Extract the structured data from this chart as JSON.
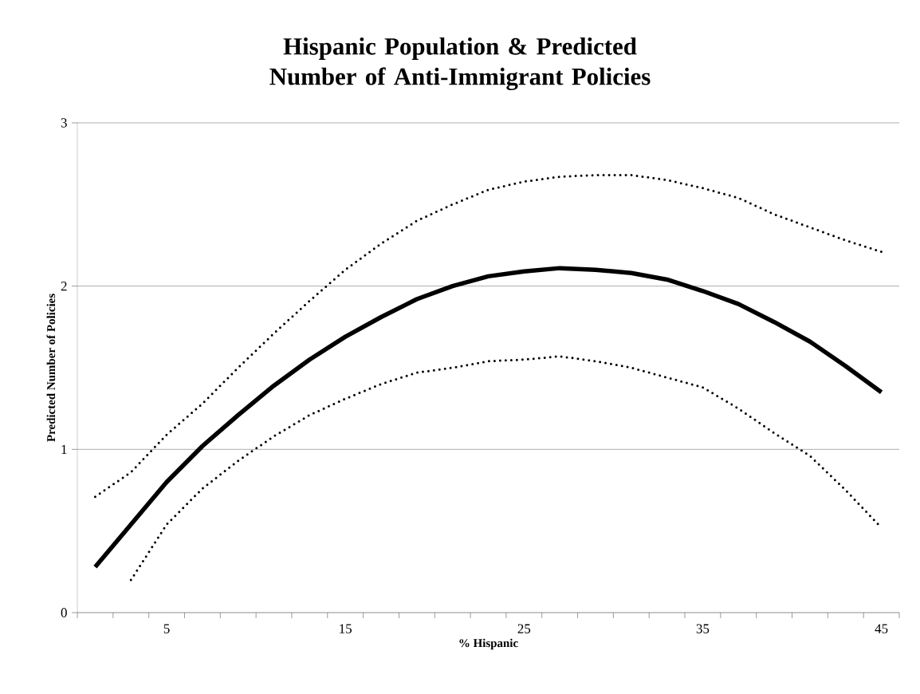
{
  "chart_data": {
    "type": "line",
    "title": "Hispanic Population & Predicted Number of Anti-Immigrant Policies",
    "xlabel": "% Hispanic",
    "ylabel": "Predicted Number of Policies",
    "categories": [
      null,
      null,
      "5",
      null,
      null,
      null,
      null,
      "15",
      null,
      null,
      null,
      null,
      "25",
      null,
      null,
      null,
      null,
      "35",
      null,
      null,
      null,
      null,
      "45"
    ],
    "series": [
      {
        "color": "#000000",
        "line_style": "solid",
        "values": [
          0.28,
          0.54,
          0.8,
          1.02,
          1.21,
          1.39,
          1.55,
          1.69,
          1.81,
          1.92,
          2.0,
          2.06,
          2.09,
          2.11,
          2.1,
          2.08,
          2.04,
          1.97,
          1.89,
          1.78,
          1.66,
          1.51,
          1.35
        ]
      },
      {
        "color": "#000000",
        "line_style": "dotted",
        "values": [
          0.71,
          0.86,
          1.09,
          1.28,
          1.5,
          1.71,
          1.91,
          2.1,
          2.26,
          2.4,
          2.5,
          2.59,
          2.64,
          2.67,
          2.68,
          2.68,
          2.65,
          2.6,
          2.54,
          2.44,
          2.36,
          2.28,
          2.21
        ]
      },
      {
        "color": "#000000",
        "line_style": "dotted",
        "values": [
          null,
          0.2,
          0.54,
          0.76,
          0.93,
          1.08,
          1.21,
          1.31,
          1.4,
          1.47,
          1.5,
          1.54,
          1.55,
          1.57,
          1.54,
          1.5,
          1.44,
          1.38,
          1.25,
          1.1,
          0.96,
          0.75,
          0.52
        ]
      }
    ],
    "ylim": [
      0,
      3
    ],
    "yticks": [
      0,
      1,
      2,
      3
    ],
    "grid": "y"
  }
}
